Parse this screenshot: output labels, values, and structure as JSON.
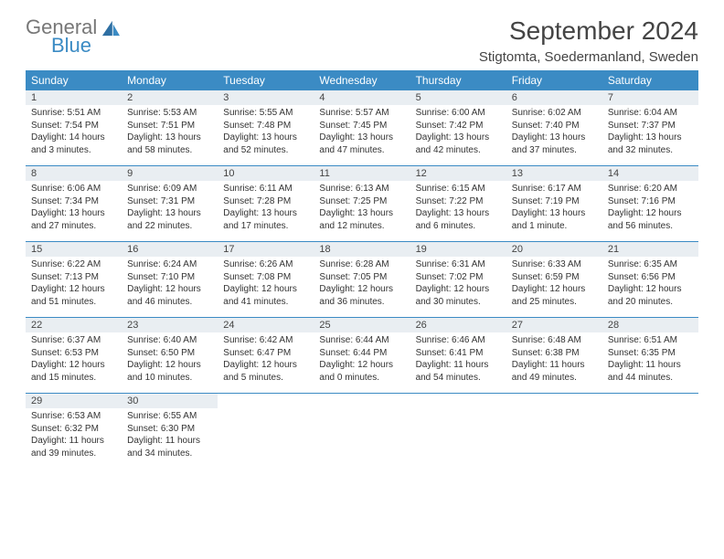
{
  "brand": {
    "general": "General",
    "blue": "Blue"
  },
  "header": {
    "month_title": "September 2024",
    "location": "Stigtomta, Soedermanland, Sweden"
  },
  "colors": {
    "accent": "#3b8bc4",
    "daynum_bg": "#e9eef2",
    "text": "#333333",
    "header_text": "#444444",
    "page_bg": "#ffffff"
  },
  "typography": {
    "title_fontsize": 28,
    "location_fontsize": 15,
    "dow_fontsize": 12,
    "cell_fontsize": 10
  },
  "dow": [
    "Sunday",
    "Monday",
    "Tuesday",
    "Wednesday",
    "Thursday",
    "Friday",
    "Saturday"
  ],
  "weeks": [
    [
      {
        "n": "1",
        "sr": "5:51 AM",
        "ss": "7:54 PM",
        "dl": "14 hours and 3 minutes."
      },
      {
        "n": "2",
        "sr": "5:53 AM",
        "ss": "7:51 PM",
        "dl": "13 hours and 58 minutes."
      },
      {
        "n": "3",
        "sr": "5:55 AM",
        "ss": "7:48 PM",
        "dl": "13 hours and 52 minutes."
      },
      {
        "n": "4",
        "sr": "5:57 AM",
        "ss": "7:45 PM",
        "dl": "13 hours and 47 minutes."
      },
      {
        "n": "5",
        "sr": "6:00 AM",
        "ss": "7:42 PM",
        "dl": "13 hours and 42 minutes."
      },
      {
        "n": "6",
        "sr": "6:02 AM",
        "ss": "7:40 PM",
        "dl": "13 hours and 37 minutes."
      },
      {
        "n": "7",
        "sr": "6:04 AM",
        "ss": "7:37 PM",
        "dl": "13 hours and 32 minutes."
      }
    ],
    [
      {
        "n": "8",
        "sr": "6:06 AM",
        "ss": "7:34 PM",
        "dl": "13 hours and 27 minutes."
      },
      {
        "n": "9",
        "sr": "6:09 AM",
        "ss": "7:31 PM",
        "dl": "13 hours and 22 minutes."
      },
      {
        "n": "10",
        "sr": "6:11 AM",
        "ss": "7:28 PM",
        "dl": "13 hours and 17 minutes."
      },
      {
        "n": "11",
        "sr": "6:13 AM",
        "ss": "7:25 PM",
        "dl": "13 hours and 12 minutes."
      },
      {
        "n": "12",
        "sr": "6:15 AM",
        "ss": "7:22 PM",
        "dl": "13 hours and 6 minutes."
      },
      {
        "n": "13",
        "sr": "6:17 AM",
        "ss": "7:19 PM",
        "dl": "13 hours and 1 minute."
      },
      {
        "n": "14",
        "sr": "6:20 AM",
        "ss": "7:16 PM",
        "dl": "12 hours and 56 minutes."
      }
    ],
    [
      {
        "n": "15",
        "sr": "6:22 AM",
        "ss": "7:13 PM",
        "dl": "12 hours and 51 minutes."
      },
      {
        "n": "16",
        "sr": "6:24 AM",
        "ss": "7:10 PM",
        "dl": "12 hours and 46 minutes."
      },
      {
        "n": "17",
        "sr": "6:26 AM",
        "ss": "7:08 PM",
        "dl": "12 hours and 41 minutes."
      },
      {
        "n": "18",
        "sr": "6:28 AM",
        "ss": "7:05 PM",
        "dl": "12 hours and 36 minutes."
      },
      {
        "n": "19",
        "sr": "6:31 AM",
        "ss": "7:02 PM",
        "dl": "12 hours and 30 minutes."
      },
      {
        "n": "20",
        "sr": "6:33 AM",
        "ss": "6:59 PM",
        "dl": "12 hours and 25 minutes."
      },
      {
        "n": "21",
        "sr": "6:35 AM",
        "ss": "6:56 PM",
        "dl": "12 hours and 20 minutes."
      }
    ],
    [
      {
        "n": "22",
        "sr": "6:37 AM",
        "ss": "6:53 PM",
        "dl": "12 hours and 15 minutes."
      },
      {
        "n": "23",
        "sr": "6:40 AM",
        "ss": "6:50 PM",
        "dl": "12 hours and 10 minutes."
      },
      {
        "n": "24",
        "sr": "6:42 AM",
        "ss": "6:47 PM",
        "dl": "12 hours and 5 minutes."
      },
      {
        "n": "25",
        "sr": "6:44 AM",
        "ss": "6:44 PM",
        "dl": "12 hours and 0 minutes."
      },
      {
        "n": "26",
        "sr": "6:46 AM",
        "ss": "6:41 PM",
        "dl": "11 hours and 54 minutes."
      },
      {
        "n": "27",
        "sr": "6:48 AM",
        "ss": "6:38 PM",
        "dl": "11 hours and 49 minutes."
      },
      {
        "n": "28",
        "sr": "6:51 AM",
        "ss": "6:35 PM",
        "dl": "11 hours and 44 minutes."
      }
    ],
    [
      {
        "n": "29",
        "sr": "6:53 AM",
        "ss": "6:32 PM",
        "dl": "11 hours and 39 minutes."
      },
      {
        "n": "30",
        "sr": "6:55 AM",
        "ss": "6:30 PM",
        "dl": "11 hours and 34 minutes."
      },
      null,
      null,
      null,
      null,
      null
    ]
  ],
  "labels": {
    "sunrise": "Sunrise: ",
    "sunset": "Sunset: ",
    "daylight": "Daylight: "
  }
}
